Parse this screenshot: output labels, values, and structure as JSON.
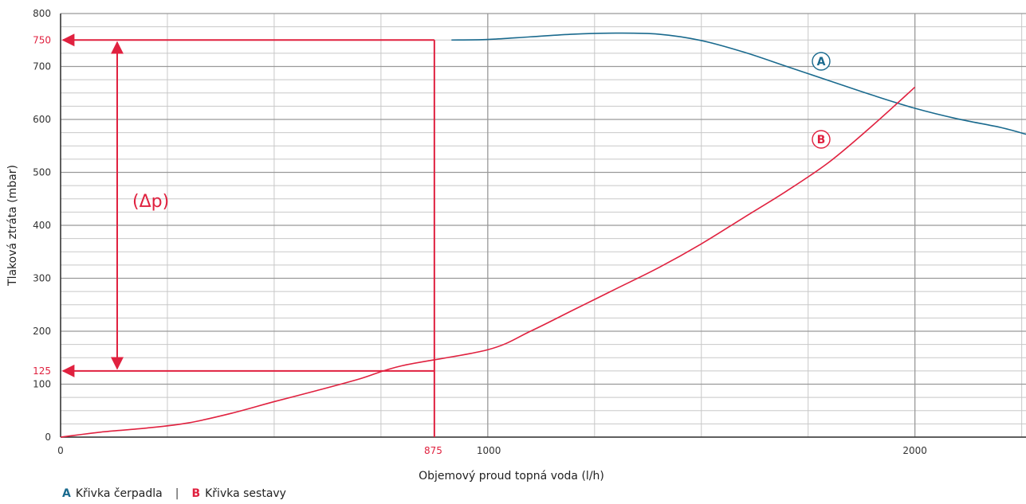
{
  "colors": {
    "pump": "#1a6a8e",
    "system": "#e0213f",
    "grid_major": "#999999",
    "grid_minor": "#c8c8c8"
  },
  "legend": {
    "a_key": "A",
    "a_label": "Křivka čerpadla",
    "separator": "|",
    "b_key": "B",
    "b_label": "Křivka sestavy"
  },
  "chart_data": {
    "type": "line",
    "xlabel": "Objemový proud topná voda (l/h)",
    "ylabel": "Tlaková ztráta (mbar)",
    "xlim": [
      0,
      2260
    ],
    "ylim": [
      0,
      800
    ],
    "x_ticks": [
      {
        "value": 0,
        "label": "0"
      },
      {
        "value": 875,
        "label": "875",
        "highlight": true
      },
      {
        "value": 1000,
        "label": "1000"
      },
      {
        "value": 2000,
        "label": "2000"
      }
    ],
    "y_ticks": [
      {
        "value": 0,
        "label": "0"
      },
      {
        "value": 100,
        "label": "100"
      },
      {
        "value": 125,
        "label": "125",
        "highlight": true
      },
      {
        "value": 200,
        "label": "200"
      },
      {
        "value": 300,
        "label": "300"
      },
      {
        "value": 400,
        "label": "400"
      },
      {
        "value": 500,
        "label": "500"
      },
      {
        "value": 600,
        "label": "600"
      },
      {
        "value": 700,
        "label": "700"
      },
      {
        "value": 750,
        "label": "750",
        "highlight": true
      },
      {
        "value": 800,
        "label": "800"
      }
    ],
    "x_major_grid": [
      0,
      1000,
      2000
    ],
    "x_minor_step": 250,
    "y_major_grid": [
      0,
      100,
      200,
      300,
      400,
      500,
      600,
      700,
      800
    ],
    "y_minor_step": 25,
    "grid": true,
    "series": [
      {
        "name": "A",
        "role": "pump",
        "x": [
          915,
          1000,
          1100,
          1200,
          1300,
          1400,
          1500,
          1600,
          1700,
          1800,
          1900,
          2000,
          2100,
          2200,
          2260
        ],
        "y": [
          750,
          751,
          756,
          761,
          763,
          761,
          749,
          727,
          700,
          673,
          646,
          621,
          601,
          585,
          572
        ]
      },
      {
        "name": "B",
        "role": "system",
        "x": [
          0,
          100,
          200,
          300,
          400,
          500,
          600,
          700,
          800,
          875,
          1000,
          1100,
          1200,
          1300,
          1400,
          1500,
          1600,
          1700,
          1800,
          1900,
          2000
        ],
        "y": [
          0,
          10,
          17,
          27,
          45,
          67,
          88,
          110,
          135,
          125,
          165,
          200,
          240,
          280,
          320,
          365,
          415,
          465,
          520,
          588,
          661
        ]
      }
    ],
    "annotations": {
      "operating_flow": 875,
      "p_high": 750,
      "p_low": 125,
      "delta_label": "(Δp)",
      "label_a": "A",
      "label_b": "B"
    }
  }
}
